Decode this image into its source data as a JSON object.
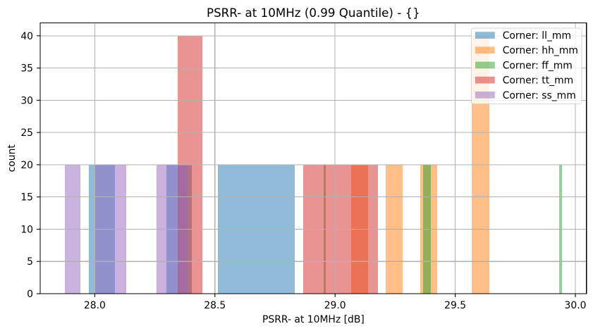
{
  "chart_data": {
    "type": "bar",
    "histogram": true,
    "title": "PSRR- at 10MHz (0.99 Quantile) - {}",
    "xlabel": "PSRR- at 10MHz [dB]",
    "ylabel": "count",
    "xlim": [
      27.773,
      30.046
    ],
    "ylim": [
      0,
      42
    ],
    "xticks": [
      28.0,
      28.5,
      29.0,
      29.5,
      30.0
    ],
    "xtick_labels": [
      "28.0",
      "28.5",
      "29.0",
      "29.5",
      "30.0"
    ],
    "yticks": [
      0,
      5,
      10,
      15,
      20,
      25,
      30,
      35,
      40
    ],
    "ytick_labels": [
      "0",
      "5",
      "10",
      "15",
      "20",
      "25",
      "30",
      "35",
      "40"
    ],
    "grid": true,
    "grid_color": "#b0b0b0",
    "legend_position": "upper right",
    "bar_alpha": 0.5,
    "series": [
      {
        "name": "Corner: ll_mm",
        "color": "#1f77b4",
        "bins": [
          {
            "left": 27.976,
            "right": 28.083,
            "count": 20
          },
          {
            "left": 28.297,
            "right": 28.404,
            "count": 20
          },
          {
            "left": 28.511,
            "right": 28.618,
            "count": 20
          },
          {
            "left": 28.618,
            "right": 28.725,
            "count": 20
          },
          {
            "left": 28.725,
            "right": 28.832,
            "count": 20
          }
        ]
      },
      {
        "name": "Corner: hh_mm",
        "color": "#ff7f0e",
        "bins": [
          {
            "left": 29.067,
            "right": 29.137,
            "count": 20
          },
          {
            "left": 29.211,
            "right": 29.281,
            "count": 20
          },
          {
            "left": 29.355,
            "right": 29.425,
            "count": 20
          },
          {
            "left": 29.569,
            "right": 29.641,
            "count": 40
          }
        ]
      },
      {
        "name": "Corner: ff_mm",
        "color": "#2ca02c",
        "bins": [
          {
            "left": 28.952,
            "right": 28.961,
            "count": 20
          },
          {
            "left": 29.366,
            "right": 29.377,
            "count": 20
          },
          {
            "left": 29.377,
            "right": 29.388,
            "count": 20
          },
          {
            "left": 29.388,
            "right": 29.399,
            "count": 20
          },
          {
            "left": 29.933,
            "right": 29.944,
            "count": 20
          }
        ]
      },
      {
        "name": "Corner: tt_mm",
        "color": "#d62728",
        "bins": [
          {
            "left": 28.344,
            "right": 28.447,
            "count": 40
          },
          {
            "left": 28.868,
            "right": 28.972,
            "count": 20
          },
          {
            "left": 28.972,
            "right": 29.075,
            "count": 20
          },
          {
            "left": 29.075,
            "right": 29.179,
            "count": 20
          }
        ]
      },
      {
        "name": "Corner: ss_mm",
        "color": "#9467bd",
        "bins": [
          {
            "left": 27.875,
            "right": 27.94,
            "count": 20
          },
          {
            "left": 28.002,
            "right": 28.067,
            "count": 20
          },
          {
            "left": 28.067,
            "right": 28.131,
            "count": 20
          },
          {
            "left": 28.257,
            "right": 28.32,
            "count": 20
          },
          {
            "left": 28.32,
            "right": 28.384,
            "count": 20
          }
        ]
      }
    ]
  }
}
